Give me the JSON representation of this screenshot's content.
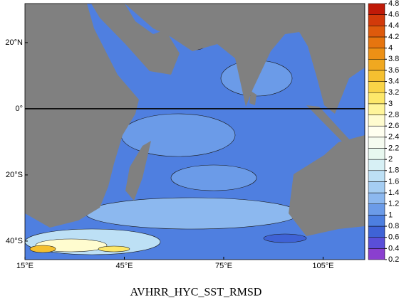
{
  "map": {
    "title": "AVHRR_HYC_SST_RMSD",
    "xlim": [
      15,
      117.6
    ],
    "ylim": [
      -45.6,
      31.8
    ],
    "xticks": [
      {
        "value": 15,
        "label": "15°E"
      },
      {
        "value": 45,
        "label": "45°E"
      },
      {
        "value": 75,
        "label": "75°E"
      },
      {
        "value": 105,
        "label": "105°E"
      }
    ],
    "yticks": [
      {
        "value": 20,
        "label": "20°N"
      },
      {
        "value": 0,
        "label": "0°"
      },
      {
        "value": -20,
        "label": "20°S"
      },
      {
        "value": -40,
        "label": "40°S"
      }
    ],
    "colorbar": {
      "levels": [
        0.2,
        0.4,
        0.6,
        0.8,
        1,
        1.2,
        1.4,
        1.6,
        1.8,
        2,
        2.2,
        2.4,
        2.6,
        2.8,
        3,
        3.2,
        3.4,
        3.6,
        3.8,
        4,
        4.2,
        4.4,
        4.6,
        4.8
      ],
      "colors": [
        "#8a3fcf",
        "#5a4fd8",
        "#3f63d6",
        "#4d7fe0",
        "#6b9be8",
        "#8cb8ef",
        "#a5cdf2",
        "#bde0f5",
        "#d7f0f5",
        "#e8f8f0",
        "#f5fbf0",
        "#fffff0",
        "#fffccf",
        "#fff59a",
        "#fde86a",
        "#f9d447",
        "#f5c030",
        "#f0a820",
        "#ec9015",
        "#e6750f",
        "#de5a0c",
        "#d23a0a",
        "#c01a08"
      ]
    }
  }
}
